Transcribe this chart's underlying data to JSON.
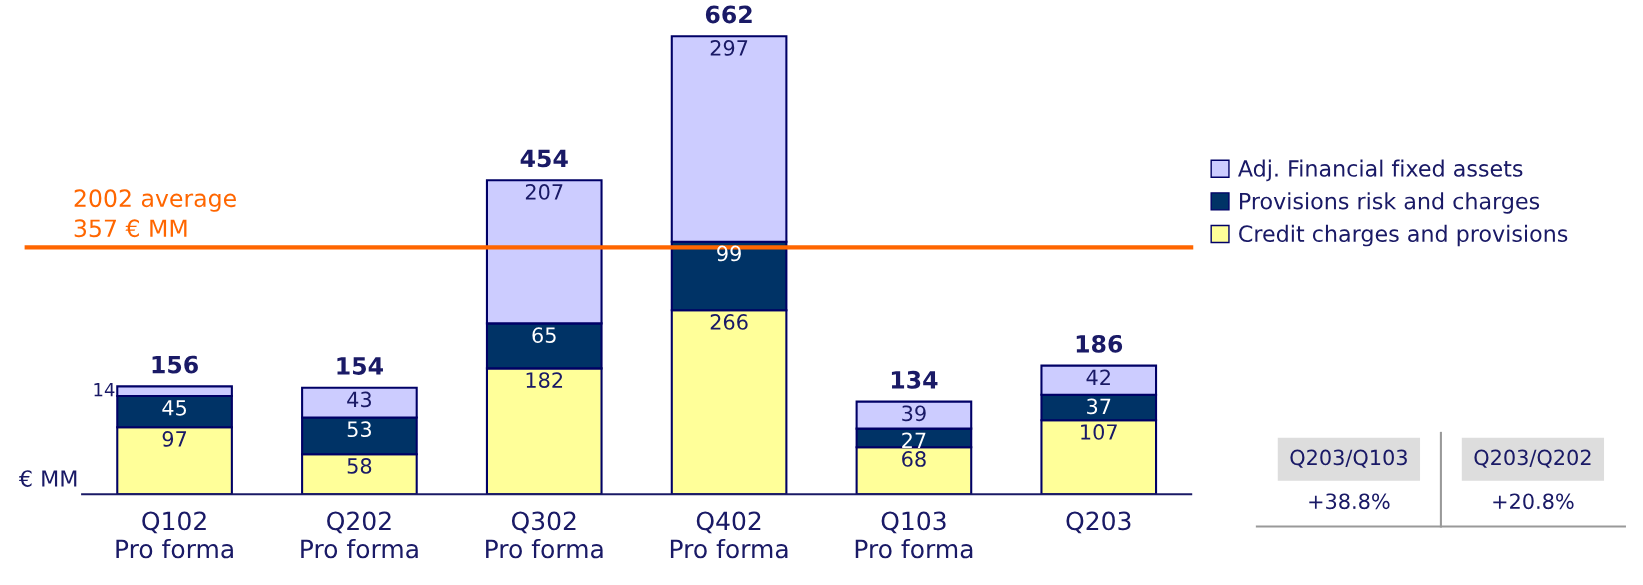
{
  "chart_data": {
    "type": "bar",
    "stacked": true,
    "ylabel": "€ MM",
    "categories": [
      "Q102\nPro forma",
      "Q202\nPro forma",
      "Q302\nPro forma",
      "Q402\nPro forma",
      "Q103\nPro forma",
      "Q203"
    ],
    "series": [
      {
        "name": "Credit charges and provisions",
        "color": "#ffff99",
        "values": [
          97,
          58,
          182,
          266,
          68,
          107
        ]
      },
      {
        "name": "Provisions risk and charges",
        "color": "#003366",
        "values": [
          45,
          53,
          65,
          99,
          27,
          37
        ]
      },
      {
        "name": "Adj. Financial fixed assets",
        "color": "#ccccff",
        "values": [
          14,
          43,
          207,
          297,
          39,
          42
        ]
      }
    ],
    "totals": [
      "156",
      "154",
      "454",
      "662",
      "134",
      "186"
    ],
    "data_labels": true,
    "ref_lines": [
      {
        "axis": "y",
        "value": 357,
        "label": "2002 average\n357 € MM",
        "color": "#ff6600"
      }
    ],
    "legend": "right",
    "grid": false,
    "annotations": [
      "Q203/Q103",
      "Q203/Q202",
      "+38.8%",
      "+20.8%"
    ]
  }
}
